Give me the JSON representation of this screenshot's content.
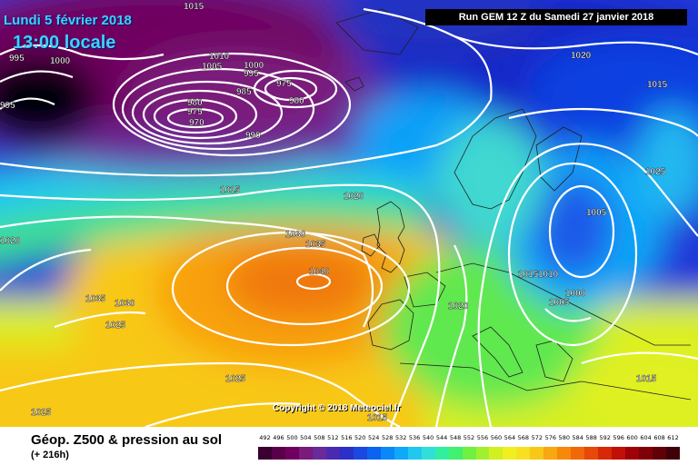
{
  "header": {
    "date_label": "Lundi 5 février 2018",
    "time_label": "13:00 locale",
    "run_label": "Run GEM 12 Z du Samedi 27 janvier 2018"
  },
  "map": {
    "copyright": "Copyright © 2018 Meteociel.fr",
    "isobar_labels": [
      {
        "text": "1015"
      },
      {
        "text": "995"
      },
      {
        "text": "1000"
      },
      {
        "text": "1010"
      },
      {
        "text": "1005"
      },
      {
        "text": "1000"
      },
      {
        "text": "995"
      },
      {
        "text": "985"
      },
      {
        "text": "975"
      },
      {
        "text": "980"
      },
      {
        "text": "980"
      },
      {
        "text": "975"
      },
      {
        "text": "970"
      },
      {
        "text": "990"
      },
      {
        "text": "995"
      },
      {
        "text": "1020"
      },
      {
        "text": "1015"
      },
      {
        "text": "1025"
      },
      {
        "text": "1015"
      },
      {
        "text": "1020"
      },
      {
        "text": "1005"
      },
      {
        "text": "1020"
      },
      {
        "text": "1030"
      },
      {
        "text": "1035"
      },
      {
        "text": "1040"
      },
      {
        "text": "1035"
      },
      {
        "text": "1030"
      },
      {
        "text": "1025"
      },
      {
        "text": "1015"
      },
      {
        "text": "1010"
      },
      {
        "text": "1000"
      },
      {
        "text": "1005"
      },
      {
        "text": "1020"
      },
      {
        "text": "1025"
      },
      {
        "text": "1025"
      },
      {
        "text": "1015"
      },
      {
        "text": "1015"
      }
    ]
  },
  "legend": {
    "title": "Géop. Z500 & pression au sol",
    "subtitle": "(+ 216h)",
    "scale_values": [
      "492",
      "496",
      "500",
      "504",
      "508",
      "512",
      "516",
      "520",
      "524",
      "528",
      "532",
      "536",
      "540",
      "544",
      "548",
      "552",
      "556",
      "560",
      "564",
      "568",
      "572",
      "576",
      "580",
      "584",
      "588",
      "592",
      "596",
      "600",
      "604",
      "608",
      "612"
    ],
    "scale_colors": [
      "#3a0030",
      "#5a0048",
      "#700060",
      "#7a1a7a",
      "#6a2a9a",
      "#4a2ab0",
      "#2a30c8",
      "#1a48e0",
      "#0a64f0",
      "#0a88f8",
      "#10a8f8",
      "#20c8f0",
      "#30e0d8",
      "#30f0a0",
      "#40f070",
      "#70f040",
      "#a0f030",
      "#d0f020",
      "#f0f020",
      "#f8e020",
      "#f8c818",
      "#f8a810",
      "#f88808",
      "#f06808",
      "#e84808",
      "#d82808",
      "#c01008",
      "#a00008",
      "#800008",
      "#600008",
      "#400008"
    ]
  }
}
